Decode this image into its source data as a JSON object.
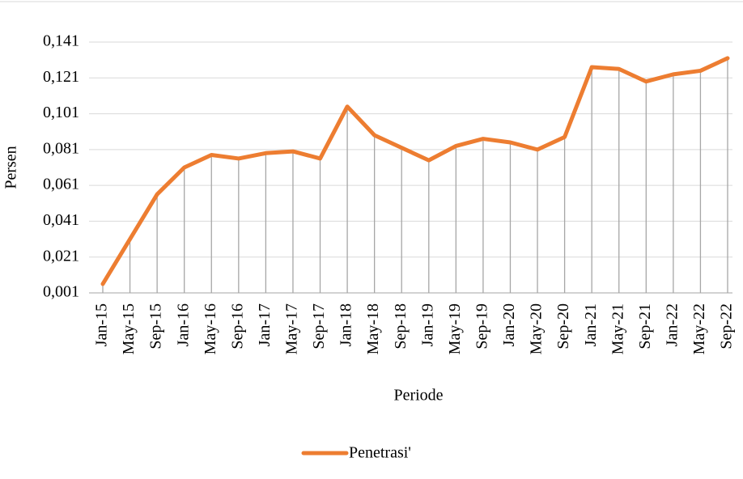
{
  "chart_data": {
    "type": "line",
    "categories": [
      "Jan-15",
      "May-15",
      "Sep-15",
      "Jan-16",
      "May-16",
      "Sep-16",
      "Jan-17",
      "May-17",
      "Sep-17",
      "Jan-18",
      "May-18",
      "Sep-18",
      "Jan-19",
      "May-19",
      "Sep-19",
      "Jan-20",
      "May-20",
      "Sep-20",
      "Jan-21",
      "May-21",
      "Sep-21",
      "Jan-22",
      "May-22",
      "Sep-22"
    ],
    "series": [
      {
        "name": "Penetrasi'",
        "color": "#ed7d31",
        "values": [
          0.006,
          0.031,
          0.056,
          0.071,
          0.078,
          0.076,
          0.079,
          0.08,
          0.076,
          0.105,
          0.089,
          0.082,
          0.075,
          0.083,
          0.087,
          0.085,
          0.081,
          0.088,
          0.127,
          0.126,
          0.119,
          0.123,
          0.125,
          0.132
        ]
      }
    ],
    "ylim": [
      0.001,
      0.141
    ],
    "yticks": [
      {
        "value": 0.001,
        "label": "0,001"
      },
      {
        "value": 0.021,
        "label": "0,021"
      },
      {
        "value": 0.041,
        "label": "0,041"
      },
      {
        "value": 0.061,
        "label": "0,061"
      },
      {
        "value": 0.081,
        "label": "0,081"
      },
      {
        "value": 0.101,
        "label": "0,101"
      },
      {
        "value": 0.121,
        "label": "0,121"
      },
      {
        "value": 0.141,
        "label": "0,141"
      }
    ],
    "xlabel": "Periode",
    "ylabel": "Persen",
    "grid": true,
    "drop_lines": true,
    "legend": "bottom"
  }
}
